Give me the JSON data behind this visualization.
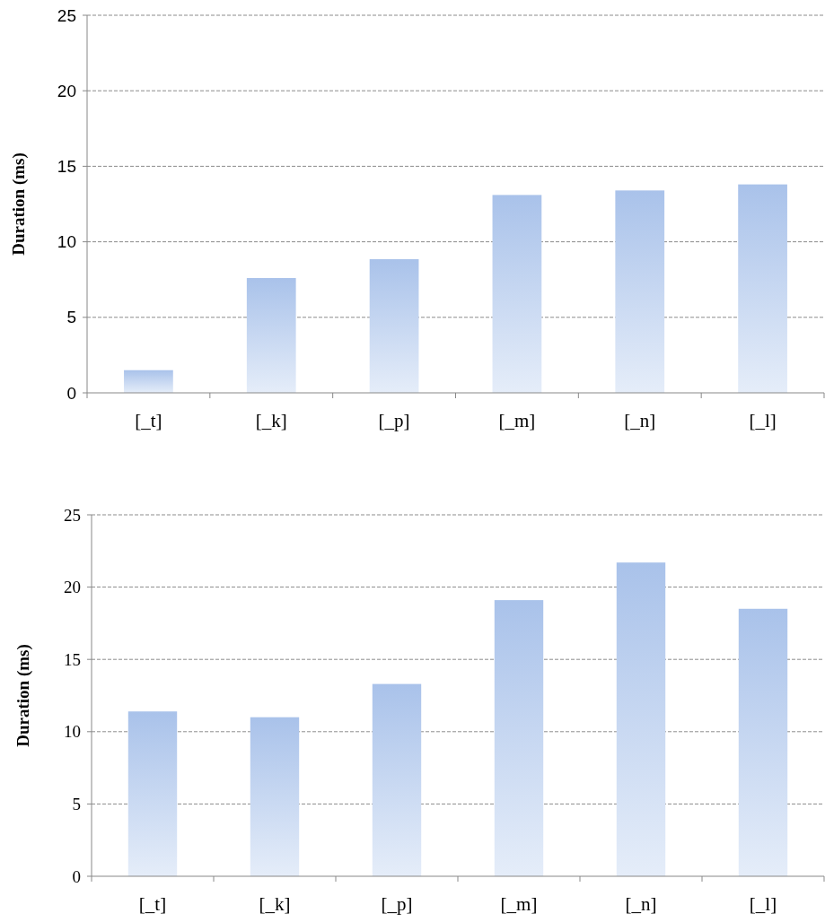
{
  "chart_data": [
    {
      "type": "bar",
      "ylabel": "Duration (ms)",
      "categories": [
        "[_t]",
        "[_k]",
        "[_p]",
        "[_m]",
        "[_n]",
        "[_l]"
      ],
      "values": [
        1.5,
        7.6,
        8.85,
        13.1,
        13.4,
        13.8
      ],
      "color": "#a9c2ea",
      "ylim": [
        0,
        25
      ],
      "yticks": [
        0,
        5,
        10,
        15,
        20,
        25
      ],
      "grid": "y"
    },
    {
      "type": "bar",
      "ylabel": "Duration (ms)",
      "categories": [
        "[_t]",
        "[_k]",
        "[_p]",
        "[_m]",
        "[_n]",
        "[_l]"
      ],
      "values": [
        11.4,
        11.0,
        13.3,
        19.1,
        21.7,
        18.5
      ],
      "color": "#a9c2ea",
      "ylim": [
        0,
        25
      ],
      "yticks": [
        0,
        5,
        10,
        15,
        20,
        25
      ],
      "grid": "y"
    }
  ]
}
